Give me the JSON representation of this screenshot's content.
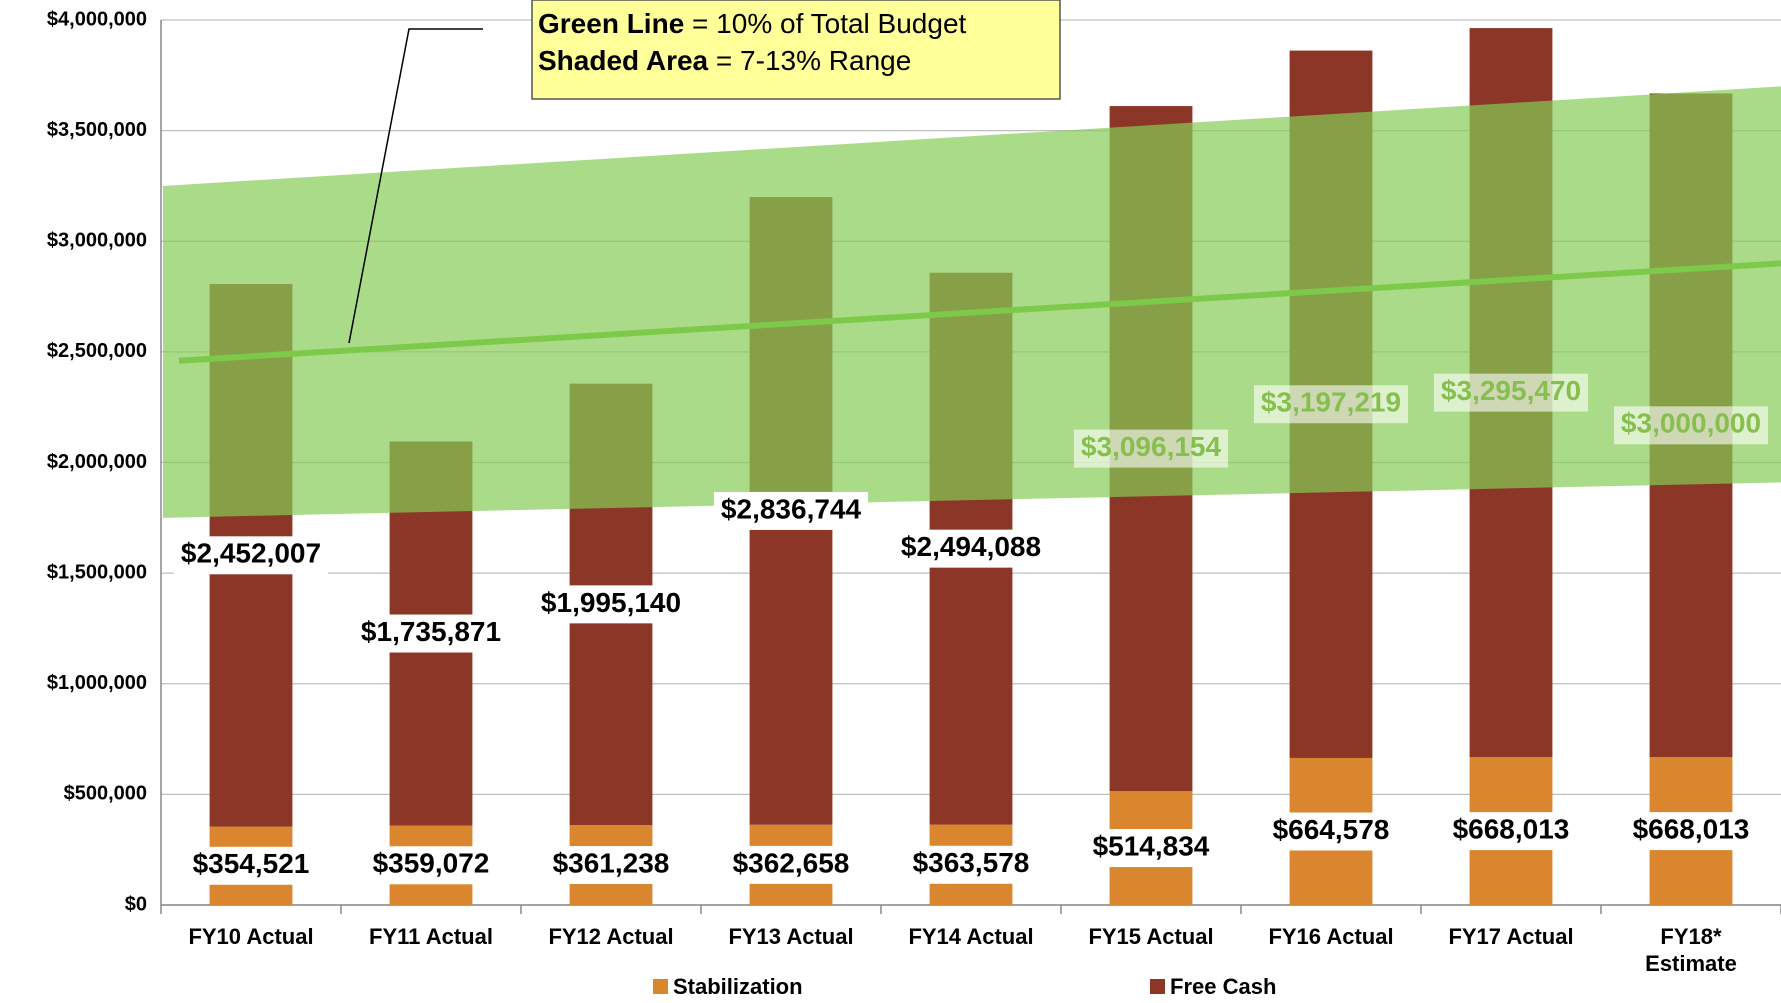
{
  "chart_data": {
    "type": "bar",
    "stacked": true,
    "categories": [
      "FY10 Actual",
      "FY11 Actual",
      "FY12 Actual",
      "FY13 Actual",
      "FY14 Actual",
      "FY15 Actual",
      "FY16 Actual",
      "FY17 Actual",
      "FY18*\nEstimate"
    ],
    "series": [
      {
        "name": "Stabilization",
        "color": "#d9862e",
        "values": [
          354521,
          359072,
          361238,
          362658,
          363578,
          514834,
          664578,
          668013,
          668013
        ],
        "value_labels": [
          "$354,521",
          "$359,072",
          "$361,238",
          "$362,658",
          "$363,578",
          "$514,834",
          "$664,578",
          "$668,013",
          "$668,013"
        ]
      },
      {
        "name": "Free Cash",
        "color": "#8b3626",
        "values": [
          2452007,
          1735871,
          1995140,
          2836744,
          2494088,
          3096154,
          3197219,
          3295470,
          3000000
        ],
        "value_labels": [
          "$2,452,007",
          "$1,735,871",
          "$1,995,140",
          "$2,836,744",
          "$2,494,088",
          "$3,096,154",
          "$3,197,219",
          "$3,295,470",
          "$3,000,000"
        ]
      }
    ],
    "reference_line": {
      "color": "#7dc94a",
      "values": [
        2460000,
        2900000
      ]
    },
    "band": {
      "color": "#86cc55",
      "lower": [
        1750000,
        1910000
      ],
      "upper": [
        3250000,
        3700000
      ]
    },
    "annotation": {
      "line1_bold": "Green Line",
      "line1": "= 10% of Total Budget",
      "line2_bold": "Shaded Area",
      "line2": "= 7-13% Range"
    },
    "ylim": [
      0,
      4000000
    ],
    "yticks": [
      {
        "value": 0,
        "label": "$0"
      },
      {
        "value": 500000,
        "label": "$500,000"
      },
      {
        "value": 1000000,
        "label": "$1,000,000"
      },
      {
        "value": 1500000,
        "label": "$1,500,000"
      },
      {
        "value": 2000000,
        "label": "$2,000,000"
      },
      {
        "value": 2500000,
        "label": "$2,500,000"
      },
      {
        "value": 3000000,
        "label": "$3,000,000"
      },
      {
        "value": 3500000,
        "label": "$3,500,000"
      },
      {
        "value": 4000000,
        "label": "$4,000,000"
      }
    ],
    "grid": true,
    "legend": "bottom"
  }
}
